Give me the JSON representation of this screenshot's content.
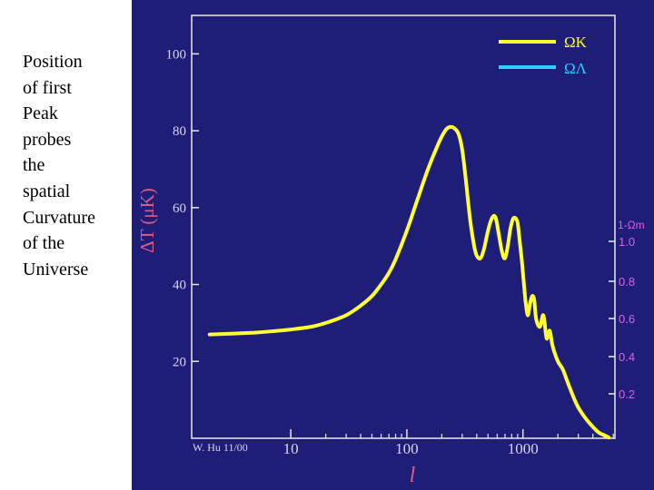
{
  "slide": {
    "caption": "Position\nof first\nPeak\nprobes\nthe\nspatial\nCurvature\nof the\nUniverse"
  },
  "chart_data": {
    "type": "line",
    "ylabel": "ΔT (μK)",
    "xlabel": "l",
    "x_scale": "log",
    "ylim": [
      0,
      110
    ],
    "y_ticks": [
      20,
      40,
      60,
      80,
      100
    ],
    "x_ticks": [
      10,
      100,
      1000
    ],
    "x_tick_labels": [
      "10",
      "100",
      "1000"
    ],
    "credit": "W. Hu 11/00",
    "legend": {
      "position": "top-right",
      "entries": [
        {
          "label": "ΩK",
          "color": "#ffff33"
        },
        {
          "label": "ΩΛ",
          "color": "#33ccff"
        }
      ]
    },
    "right_axis": {
      "label": "1-Ωm",
      "ticks": [
        "1.0",
        "0.8",
        "0.6",
        "0.4",
        "0.2"
      ]
    },
    "series": [
      {
        "name": "ΩK",
        "color": "#ffff33",
        "x": [
          2,
          3,
          5,
          8,
          10,
          15,
          20,
          30,
          40,
          50,
          60,
          70,
          80,
          100,
          120,
          150,
          180,
          200,
          220,
          240,
          260,
          280,
          300,
          320,
          350,
          380,
          400,
          430,
          460,
          500,
          540,
          580,
          620,
          660,
          700,
          740,
          780,
          820,
          860,
          900,
          940,
          980,
          1000,
          1050,
          1100,
          1150,
          1200,
          1250,
          1300,
          1400,
          1500,
          1600,
          1700,
          1800,
          2000,
          2200,
          2400,
          2700,
          3000,
          3500,
          4000,
          4500,
          5000,
          5500
        ],
        "y": [
          27,
          27.2,
          27.5,
          28,
          28.3,
          29,
          30,
          32,
          34.5,
          37,
          40,
          43,
          46.5,
          54,
          61,
          69.5,
          75.5,
          78.5,
          80.5,
          81,
          80.5,
          79,
          75,
          68,
          57,
          50,
          47.5,
          46.8,
          49,
          54,
          57.2,
          57.5,
          53,
          48.5,
          46.8,
          50,
          54.5,
          57,
          57.3,
          56,
          51,
          46,
          43,
          36,
          32,
          35,
          37,
          36,
          31,
          29,
          32,
          26,
          28,
          24,
          20,
          18,
          15,
          11,
          8,
          5,
          3,
          1.5,
          0.8,
          0.2
        ]
      }
    ]
  }
}
